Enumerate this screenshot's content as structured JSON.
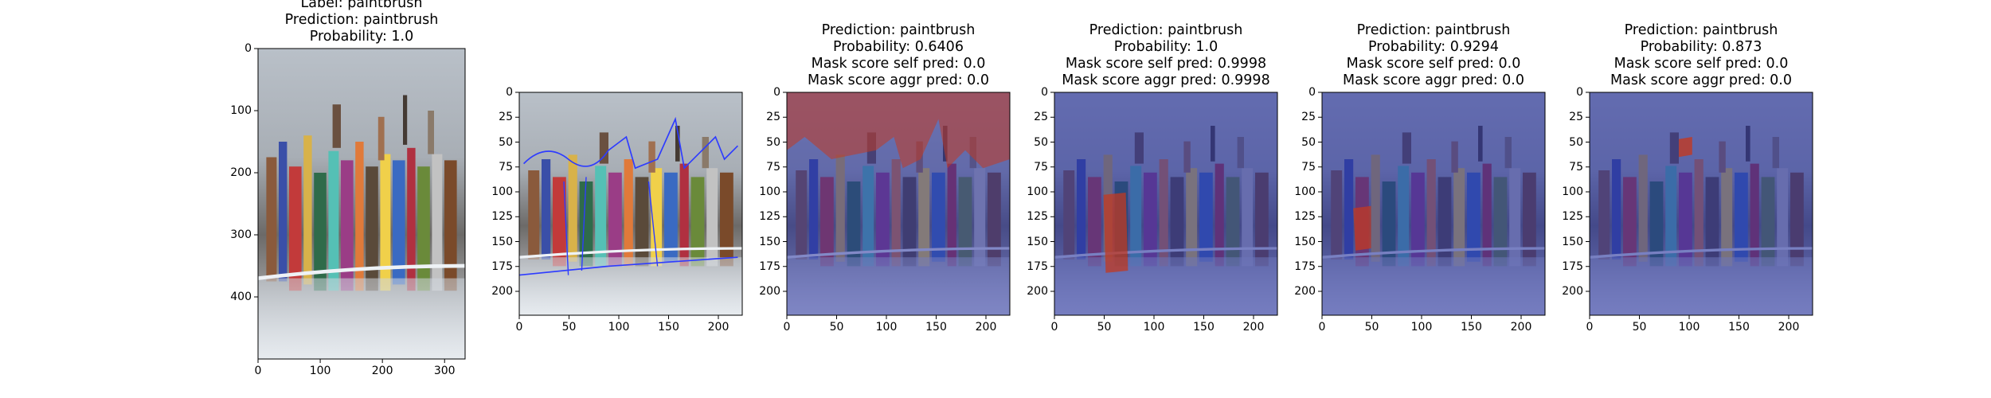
{
  "panels": [
    {
      "title_lines": [
        "Label: paintbrush",
        "Prediction: paintbrush",
        "Probability: 1.0"
      ],
      "xticks": [
        "0",
        "100",
        "200",
        "300"
      ],
      "yticks": [
        "0",
        "100",
        "200",
        "300",
        "400"
      ],
      "xrange": [
        0,
        333
      ],
      "yrange": [
        0,
        500
      ],
      "overlay": "none"
    },
    {
      "title_lines": [],
      "xticks": [
        "0",
        "50",
        "100",
        "150",
        "200"
      ],
      "yticks": [
        "0",
        "25",
        "50",
        "75",
        "100",
        "125",
        "150",
        "175",
        "200"
      ],
      "xrange": [
        0,
        224
      ],
      "yrange": [
        0,
        224
      ],
      "overlay": "segment-outlines"
    },
    {
      "title_lines": [
        "Prediction: paintbrush",
        "Probability: 0.6406",
        "Mask score self pred: 0.0",
        "Mask score aggr pred: 0.0"
      ],
      "xticks": [
        "0",
        "50",
        "100",
        "150",
        "200"
      ],
      "yticks": [
        "0",
        "25",
        "50",
        "75",
        "100",
        "125",
        "150",
        "175",
        "200"
      ],
      "xrange": [
        0,
        224
      ],
      "yrange": [
        0,
        224
      ],
      "overlay": "blue-with-red-background"
    },
    {
      "title_lines": [
        "Prediction: paintbrush",
        "Probability: 1.0",
        "Mask score self pred: 0.9998",
        "Mask score aggr pred: 0.9998"
      ],
      "xticks": [
        "0",
        "50",
        "100",
        "150",
        "200"
      ],
      "yticks": [
        "0",
        "25",
        "50",
        "75",
        "100",
        "125",
        "150",
        "175",
        "200"
      ],
      "xrange": [
        0,
        224
      ],
      "yrange": [
        0,
        224
      ],
      "overlay": "blue-with-red-brush"
    },
    {
      "title_lines": [
        "Prediction: paintbrush",
        "Probability: 0.9294",
        "Mask score self pred: 0.0",
        "Mask score aggr pred: 0.0"
      ],
      "xticks": [
        "0",
        "50",
        "100",
        "150",
        "200"
      ],
      "yticks": [
        "0",
        "25",
        "50",
        "75",
        "100",
        "125",
        "150",
        "175",
        "200"
      ],
      "xrange": [
        0,
        224
      ],
      "yrange": [
        0,
        224
      ],
      "overlay": "blue-with-red-brush-small"
    },
    {
      "title_lines": [
        "Prediction: paintbrush",
        "Probability: 0.873",
        "Mask score self pred: 0.0",
        "Mask score aggr pred: 0.0"
      ],
      "xticks": [
        "0",
        "50",
        "100",
        "150",
        "200"
      ],
      "yticks": [
        "0",
        "25",
        "50",
        "75",
        "100",
        "125",
        "150",
        "175",
        "200"
      ],
      "xrange": [
        0,
        224
      ],
      "yrange": [
        0,
        224
      ],
      "overlay": "blue-with-red-tip"
    }
  ],
  "colors": {
    "mask_blue": "#2a33a0",
    "mask_red": "#c23a22",
    "outline_blue": "#2e3cff"
  }
}
